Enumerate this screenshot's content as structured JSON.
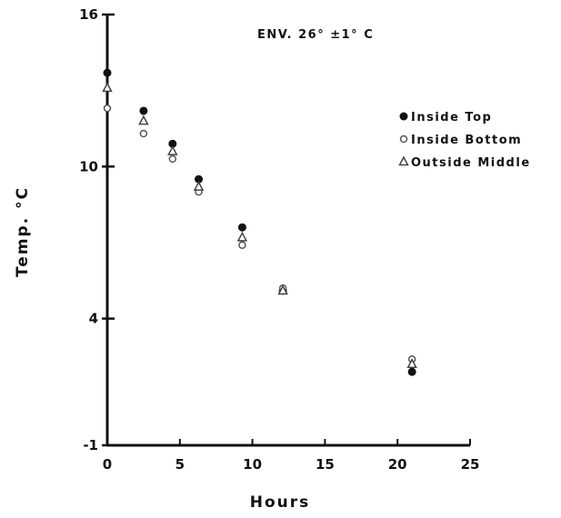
{
  "chart_data": {
    "type": "scatter",
    "title": "ENV. 26° ±1° C",
    "xlabel": "Hours",
    "ylabel": "Temp. °C",
    "xlim": [
      0,
      25
    ],
    "ylim": [
      -1,
      16
    ],
    "xticks": [
      "0",
      "5",
      "10",
      "15",
      "20",
      "25"
    ],
    "yticks": [
      "-1",
      "4",
      "10",
      "16"
    ],
    "grid": false,
    "legend_position": "top-right",
    "series": [
      {
        "name": "Inside Top",
        "marker": "circle-filled",
        "x": [
          0,
          2.5,
          4.5,
          6.3,
          9.3,
          12.1,
          21.0
        ],
        "y": [
          13.7,
          12.2,
          10.9,
          9.5,
          7.6,
          5.1,
          1.9
        ]
      },
      {
        "name": "Inside Bottom",
        "marker": "circle-open",
        "x": [
          0,
          2.5,
          4.5,
          6.3,
          9.3,
          12.1,
          21.0
        ],
        "y": [
          12.3,
          11.3,
          10.3,
          9.0,
          6.9,
          5.2,
          2.4
        ]
      },
      {
        "name": "Outside Middle",
        "marker": "triangle",
        "x": [
          0,
          2.5,
          4.5,
          6.3,
          9.3,
          12.1,
          21.0
        ],
        "y": [
          13.1,
          11.8,
          10.6,
          9.2,
          7.2,
          5.1,
          2.2
        ]
      }
    ]
  }
}
